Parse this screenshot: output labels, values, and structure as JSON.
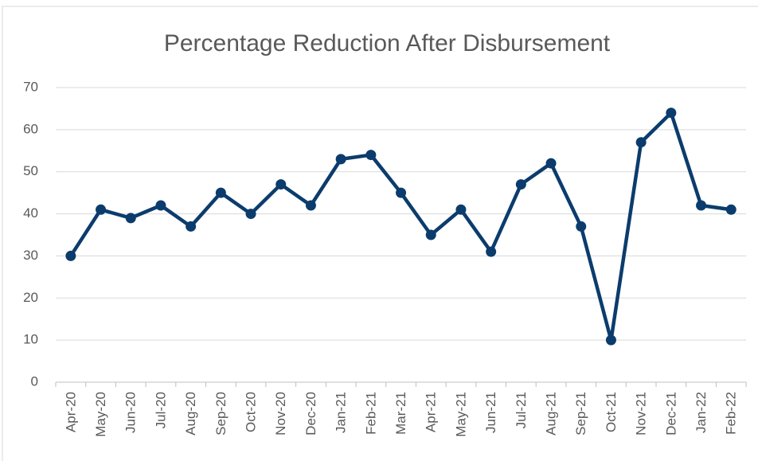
{
  "chart_data": {
    "type": "line",
    "title": "Percentage Reduction After Disbursement",
    "categories": [
      "Apr-20",
      "May-20",
      "Jun-20",
      "Jul-20",
      "Aug-20",
      "Sep-20",
      "Oct-20",
      "Nov-20",
      "Dec-20",
      "Jan-21",
      "Feb-21",
      "Mar-21",
      "Apr-21",
      "May-21",
      "Jun-21",
      "Jul-21",
      "Aug-21",
      "Sep-21",
      "Oct-21",
      "Nov-21",
      "Dec-21",
      "Jan-22",
      "Feb-22"
    ],
    "values": [
      30,
      41,
      39,
      42,
      37,
      45,
      40,
      47,
      42,
      53,
      54,
      45,
      35,
      41,
      31,
      47,
      52,
      37,
      10,
      57,
      64,
      42,
      41
    ],
    "color": "#0b3c6d",
    "ylim": [
      0,
      70
    ],
    "yticks": [
      0,
      10,
      20,
      30,
      40,
      50,
      60,
      70
    ],
    "grid": true
  }
}
